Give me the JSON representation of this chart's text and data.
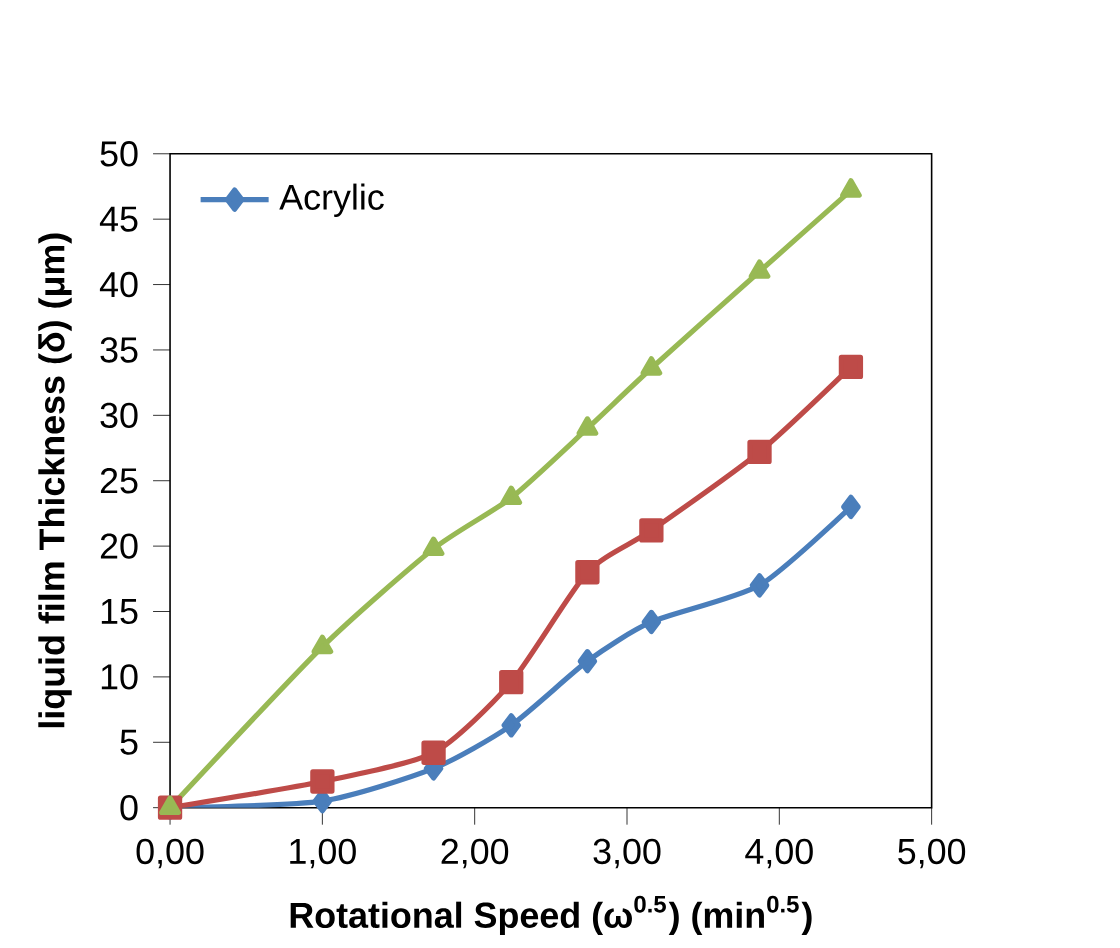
{
  "chart_data": {
    "type": "line",
    "xlabel": "Rotational Speed  (ω$^{0.5}$) (min$^{0.5}$)",
    "ylabel": "liquid film Thickness (δ) (μm)",
    "x": [
      0,
      1,
      1.73,
      2.24,
      2.74,
      3.16,
      3.87,
      4.47
    ],
    "xlim": [
      0,
      5
    ],
    "xticks": [
      {
        "value": 0,
        "label": "0,00"
      },
      {
        "value": 1,
        "label": "1,00"
      },
      {
        "value": 2,
        "label": "2,00"
      },
      {
        "value": 3,
        "label": "3,00"
      },
      {
        "value": 4,
        "label": "4,00"
      },
      {
        "value": 5,
        "label": "5,00"
      }
    ],
    "ylim": [
      0,
      50
    ],
    "yticks": [
      0,
      5,
      10,
      15,
      20,
      25,
      30,
      35,
      40,
      45,
      50
    ],
    "series": [
      {
        "name": "Acrylic",
        "color": "#4a7ebb",
        "marker": "diamond",
        "values": [
          0,
          0.5,
          3,
          6.3,
          11.2,
          14.2,
          17,
          23
        ]
      },
      {
        "color": "#be4b48",
        "marker": "square",
        "values": [
          0,
          2,
          4.2,
          9.6,
          18,
          21.2,
          27.2,
          33.7
        ]
      },
      {
        "color": "#98b954",
        "marker": "triangle",
        "values": [
          0,
          12.3,
          19.8,
          23.7,
          29,
          33.6,
          41,
          47.2
        ]
      }
    ],
    "grid": false,
    "legend": "top left",
    "line_style": "solid"
  }
}
